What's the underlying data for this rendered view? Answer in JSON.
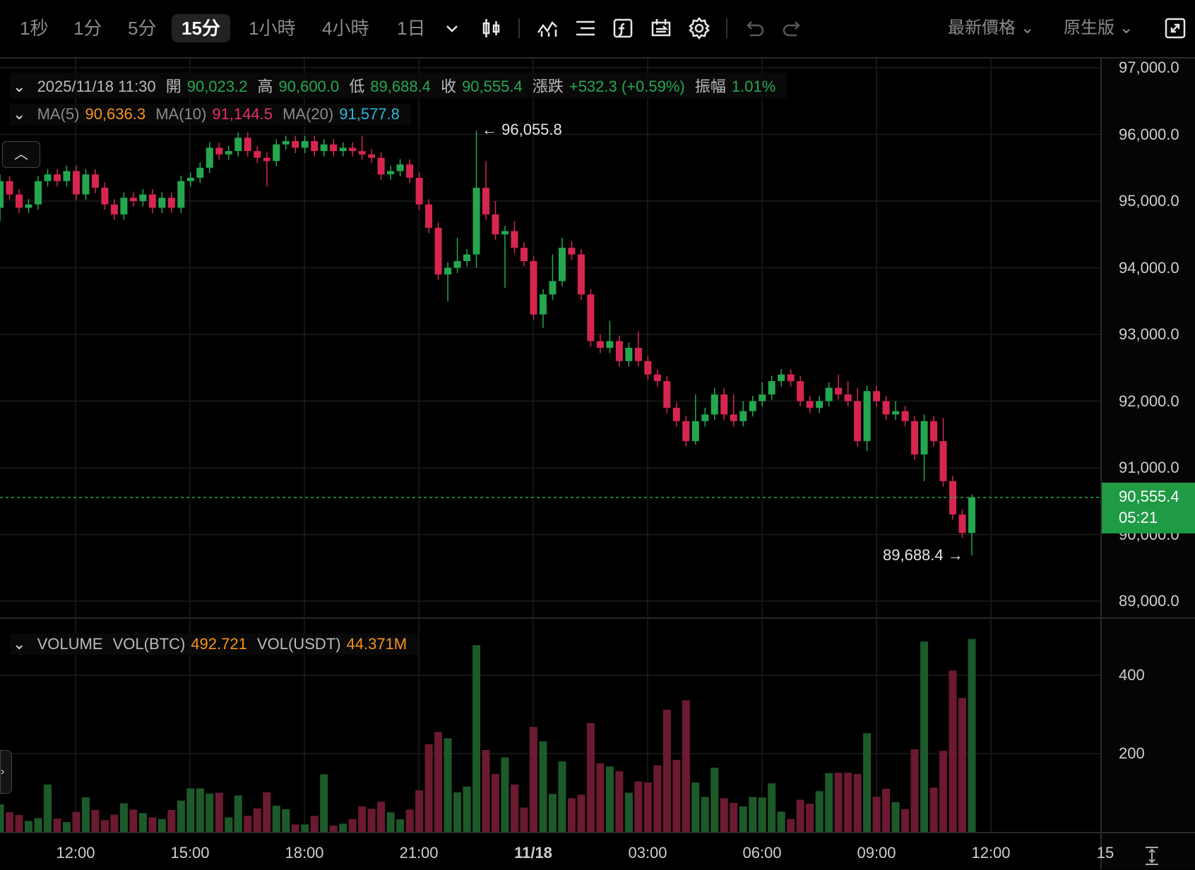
{
  "toolbar": {
    "timeframes": [
      "1秒",
      "1分",
      "5分",
      "15分",
      "1小時",
      "4小時",
      "1日"
    ],
    "active_timeframe": "15分",
    "price_type": "最新價格",
    "chart_mode": "原生版",
    "icons": [
      "candle-type-icon",
      "indicators-icon",
      "drawing-tools-icon",
      "formula-icon",
      "compare-icon",
      "settings-icon",
      "undo-icon",
      "redo-icon",
      "fullscreen-icon"
    ]
  },
  "ohlc_legend": {
    "datetime": "2025/11/18 11:30",
    "open_label": "開",
    "open": "90,023.2",
    "high_label": "高",
    "high": "90,600.0",
    "low_label": "低",
    "low": "89,688.4",
    "close_label": "收",
    "close": "90,555.4",
    "change_label": "漲跌",
    "change": "+532.3 (+0.59%)",
    "amplitude_label": "振幅",
    "amplitude": "1.01%"
  },
  "ma_legend": {
    "ma5_label": "MA(5)",
    "ma5": "90,636.3",
    "ma10_label": "MA(10)",
    "ma10": "91,144.5",
    "ma20_label": "MA(20)",
    "ma20": "91,577.8"
  },
  "volume_legend": {
    "title": "VOLUME",
    "vol_btc_label": "VOL(BTC)",
    "vol_btc": "492.721",
    "vol_usdt_label": "VOL(USDT)",
    "vol_usdt": "44.371M"
  },
  "current_price": {
    "price": "90,555.4",
    "countdown": "05:21"
  },
  "annotations": {
    "high": "96,055.8",
    "low": "89,688.4"
  },
  "colors": {
    "up": "#25a750",
    "down": "#d6264f",
    "up_volume": "#1d5a2a",
    "down_volume": "#6b1a30",
    "ma5": "#f7931a",
    "ma10": "#e6306a",
    "ma20": "#26b8d9"
  },
  "chart_data": {
    "type": "candlestick",
    "interval": "15m",
    "price_axis": {
      "ticks": [
        "97,000.0",
        "96,000.0",
        "95,000.0",
        "94,000.0",
        "93,000.0",
        "92,000.0",
        "91,000.0",
        "90,000.0",
        "89,000.0"
      ],
      "range": [
        89000,
        97000
      ]
    },
    "volume_axis": {
      "ticks": [
        "400",
        "200"
      ],
      "range": [
        0,
        400
      ]
    },
    "time_axis": {
      "ticks": [
        "12:00",
        "15:00",
        "18:00",
        "21:00",
        "11/18",
        "03:00",
        "06:00",
        "09:00",
        "12:00",
        "15"
      ]
    },
    "last_candle_time": "2025/11/18 11:30",
    "candles_ohlcv": [
      [
        94900,
        95400,
        94700,
        95300,
        70
      ],
      [
        95300,
        95380,
        95020,
        95100,
        50
      ],
      [
        95100,
        95180,
        94820,
        94900,
        43
      ],
      [
        94900,
        95030,
        94820,
        94950,
        28
      ],
      [
        94950,
        95380,
        94870,
        95300,
        35
      ],
      [
        95300,
        95480,
        95220,
        95400,
        121
      ],
      [
        95400,
        95480,
        95220,
        95300,
        34
      ],
      [
        95300,
        95530,
        95220,
        95450,
        25
      ],
      [
        95450,
        95530,
        95020,
        95100,
        51
      ],
      [
        95100,
        95480,
        95020,
        95400,
        88
      ],
      [
        95400,
        95480,
        95120,
        95200,
        56
      ],
      [
        95200,
        95280,
        94870,
        94950,
        30
      ],
      [
        94950,
        95030,
        94720,
        94800,
        44
      ],
      [
        94800,
        95130,
        94720,
        95050,
        73
      ],
      [
        95050,
        95130,
        94920,
        95000,
        57
      ],
      [
        95000,
        95180,
        94920,
        95100,
        48
      ],
      [
        95100,
        95180,
        94820,
        94900,
        37
      ],
      [
        94900,
        95130,
        94820,
        95050,
        33
      ],
      [
        95050,
        95130,
        94820,
        94900,
        56
      ],
      [
        94900,
        95380,
        94820,
        95300,
        80
      ],
      [
        95300,
        95430,
        95220,
        95350,
        111
      ],
      [
        95350,
        95580,
        95270,
        95500,
        111
      ],
      [
        95500,
        95880,
        95420,
        95800,
        98
      ],
      [
        95800,
        95880,
        95620,
        95700,
        100
      ],
      [
        95700,
        95830,
        95620,
        95750,
        37
      ],
      [
        95750,
        96030,
        95670,
        95950,
        93
      ],
      [
        95950,
        96030,
        95670,
        95750,
        41
      ],
      [
        95750,
        95830,
        95570,
        95650,
        60
      ],
      [
        95650,
        95730,
        95220,
        95600,
        101
      ],
      [
        95600,
        95930,
        95520,
        95850,
        67
      ],
      [
        95850,
        95980,
        95770,
        95900,
        58
      ],
      [
        95900,
        95980,
        95720,
        95800,
        19
      ],
      [
        95800,
        95980,
        95720,
        95900,
        19
      ],
      [
        95900,
        95980,
        95670,
        95750,
        41
      ],
      [
        95750,
        95930,
        95670,
        95850,
        147
      ],
      [
        95850,
        95930,
        95670,
        95750,
        16
      ],
      [
        95750,
        95880,
        95670,
        95800,
        21
      ],
      [
        95800,
        95880,
        95670,
        95750,
        33
      ],
      [
        95750,
        95980,
        95620,
        95700,
        65
      ],
      [
        95700,
        95780,
        95570,
        95650,
        59
      ],
      [
        95650,
        95730,
        95320,
        95400,
        77
      ],
      [
        95400,
        95530,
        95320,
        95450,
        50
      ],
      [
        95450,
        95630,
        95370,
        95550,
        32
      ],
      [
        95550,
        95630,
        95270,
        95350,
        57
      ],
      [
        95350,
        95430,
        94870,
        94950,
        106
      ],
      [
        94950,
        95030,
        94520,
        94600,
        224
      ],
      [
        94600,
        94680,
        93820,
        93900,
        255
      ],
      [
        93900,
        94080,
        93500,
        94000,
        239
      ],
      [
        94000,
        94450,
        93920,
        94100,
        101
      ],
      [
        94100,
        94280,
        94020,
        94200,
        116
      ],
      [
        94200,
        96055.8,
        94000,
        95200,
        477
      ],
      [
        95200,
        95600,
        94720,
        94800,
        209
      ],
      [
        94800,
        95000,
        94420,
        94500,
        148
      ],
      [
        94500,
        94630,
        93700,
        94550,
        190
      ],
      [
        94550,
        94700,
        94220,
        94300,
        121
      ],
      [
        94300,
        94380,
        94020,
        94100,
        62
      ],
      [
        94100,
        94180,
        93220,
        93300,
        268
      ],
      [
        93300,
        93680,
        93100,
        93600,
        231
      ],
      [
        93600,
        94200,
        93520,
        93800,
        97
      ],
      [
        93800,
        94450,
        93720,
        94300,
        180
      ],
      [
        94300,
        94400,
        94120,
        94200,
        86
      ],
      [
        94200,
        94280,
        93520,
        93600,
        95
      ],
      [
        93600,
        93680,
        92820,
        92900,
        278
      ],
      [
        92900,
        93000,
        92720,
        92800,
        175
      ],
      [
        92800,
        93200,
        92720,
        92900,
        167
      ],
      [
        92900,
        92980,
        92520,
        92600,
        155
      ],
      [
        92600,
        92880,
        92520,
        92800,
        100
      ],
      [
        92800,
        93050,
        92520,
        92600,
        129
      ],
      [
        92600,
        92680,
        92320,
        92400,
        126
      ],
      [
        92400,
        92480,
        92220,
        92300,
        170
      ],
      [
        92300,
        92380,
        91820,
        91900,
        312
      ],
      [
        91900,
        91980,
        91620,
        91700,
        184
      ],
      [
        91700,
        91780,
        91320,
        91400,
        336
      ],
      [
        91400,
        92100,
        91350,
        91700,
        126
      ],
      [
        91700,
        91900,
        91620,
        91800,
        89
      ],
      [
        91800,
        92200,
        91720,
        92100,
        164
      ],
      [
        92100,
        92200,
        91720,
        91800,
        86
      ],
      [
        91800,
        92100,
        91620,
        91700,
        74
      ],
      [
        91700,
        92000,
        91620,
        91850,
        65
      ],
      [
        91850,
        92080,
        91770,
        92000,
        89
      ],
      [
        92000,
        92280,
        91920,
        92100,
        88
      ],
      [
        92100,
        92380,
        92020,
        92300,
        124
      ],
      [
        92300,
        92480,
        92220,
        92400,
        52
      ],
      [
        92400,
        92480,
        92220,
        92300,
        33
      ],
      [
        92300,
        92380,
        91920,
        92000,
        82
      ],
      [
        92000,
        92080,
        91820,
        91900,
        72
      ],
      [
        91900,
        92080,
        91820,
        92000,
        104
      ],
      [
        92000,
        92280,
        91920,
        92200,
        150
      ],
      [
        92200,
        92400,
        92020,
        92100,
        151
      ],
      [
        92100,
        92300,
        91920,
        92000,
        151
      ],
      [
        92000,
        92200,
        91320,
        91400,
        148
      ],
      [
        91400,
        92230,
        91250,
        92150,
        252
      ],
      [
        92150,
        92230,
        91920,
        92000,
        90
      ],
      [
        92000,
        92080,
        91720,
        91800,
        110
      ],
      [
        91800,
        92000,
        91720,
        91850,
        76
      ],
      [
        91850,
        91930,
        91620,
        91700,
        58
      ],
      [
        91700,
        91780,
        91120,
        91200,
        211
      ],
      [
        91200,
        91800,
        90800,
        91700,
        486
      ],
      [
        91700,
        91780,
        91320,
        91400,
        113
      ],
      [
        91400,
        91750,
        90720,
        90800,
        207
      ],
      [
        90800,
        90880,
        90220,
        90300,
        412
      ],
      [
        90300,
        90380,
        89950,
        90023.2,
        342
      ],
      [
        90023.2,
        90600,
        89688.4,
        90555.4,
        492.721
      ]
    ]
  }
}
